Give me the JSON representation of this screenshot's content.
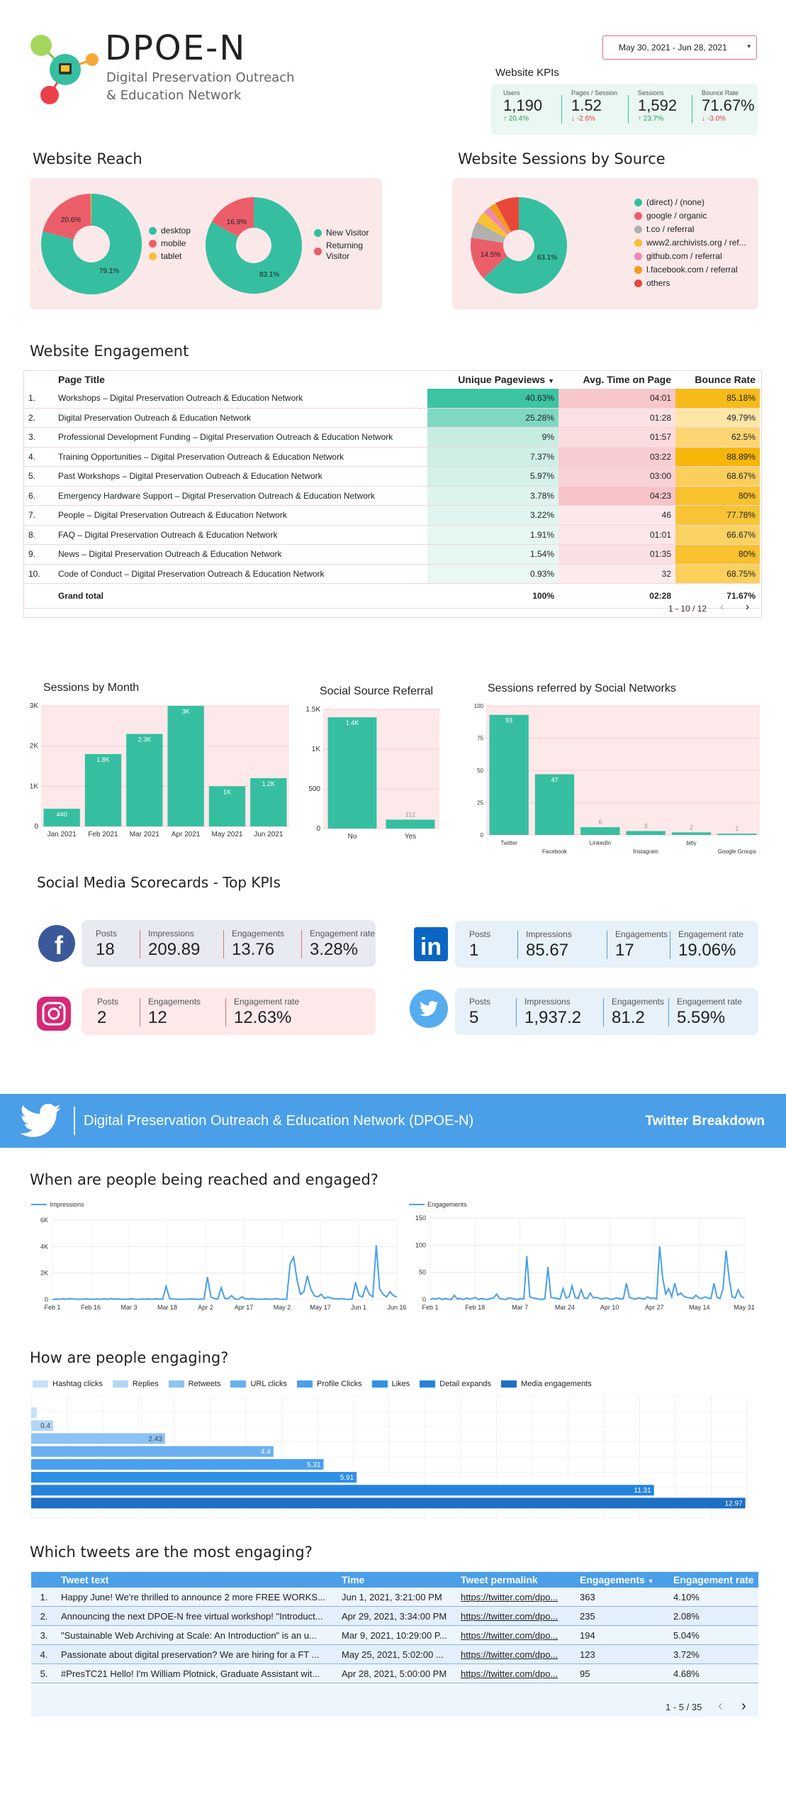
{
  "header": {
    "logo_title": "DPOE-N",
    "logo_subtitle_1": "Digital Preservation Outreach",
    "logo_subtitle_2": "& Education Network",
    "date_range": "May 30, 2021 - Jun 28, 2021",
    "kpi_title": "Website KPIs",
    "kpis": [
      {
        "label": "Users",
        "value": "1,190",
        "delta": "20.4%",
        "dir": "up"
      },
      {
        "label": "Pages / Session",
        "value": "1.52",
        "delta": "-2.6%",
        "dir": "down"
      },
      {
        "label": "Sessions",
        "value": "1,592",
        "delta": "23.7%",
        "dir": "up"
      },
      {
        "label": "Bounce Rate",
        "value": "71.67%",
        "delta": "-3.0%",
        "dir": "down"
      }
    ]
  },
  "reach": {
    "title": "Website Reach",
    "device": {
      "slices": [
        {
          "name": "desktop",
          "value": 79.1,
          "color": "#35bfa0"
        },
        {
          "name": "mobile",
          "value": 20.6,
          "color": "#ec5d6a"
        },
        {
          "name": "tablet",
          "value": 0.3,
          "color": "#f6c132"
        }
      ],
      "labels": [
        "79.1%",
        "20.6%"
      ]
    },
    "visitor": {
      "slices": [
        {
          "name": "New Visitor",
          "value": 83.1,
          "color": "#35bfa0"
        },
        {
          "name": "Returning Visitor",
          "value": 16.9,
          "color": "#ec5d6a"
        }
      ],
      "labels": [
        "83.1%",
        "16.9%"
      ]
    }
  },
  "source": {
    "title": "Website Sessions by Source",
    "slices": [
      {
        "name": "(direct) / (none)",
        "value": 63.1,
        "color": "#35bfa0"
      },
      {
        "name": "google / organic",
        "value": 14.5,
        "color": "#ec5d6a"
      },
      {
        "name": "t.co / referral",
        "value": 5.5,
        "color": "#b0b0b0"
      },
      {
        "name": "www2.archivists.org / ref...",
        "value": 4.0,
        "color": "#f6c132"
      },
      {
        "name": "github.com / referral",
        "value": 2.4,
        "color": "#ee88b3"
      },
      {
        "name": "l.facebook.com / referral",
        "value": 2.5,
        "color": "#f49a1b"
      },
      {
        "name": "others",
        "value": 8.0,
        "color": "#e8473a"
      }
    ],
    "labels": [
      "63.1%",
      "14.5%"
    ]
  },
  "engagement": {
    "title": "Website Engagement",
    "headers": {
      "page": "Page Title",
      "upv": "Unique Pageviews",
      "avg": "Avg. Time on Page",
      "bounce": "Bounce Rate"
    },
    "sort_icon": "caret-down-icon",
    "rows": [
      {
        "n": "1.",
        "page": "Workshops – Digital Preservation Outreach & Education Network",
        "upv": "40.63%",
        "avg": "04:01",
        "bounce": "85.18%",
        "upv_v": 40.63,
        "avg_v": 241,
        "bounce_v": 85.18
      },
      {
        "n": "2.",
        "page": "Digital Preservation Outreach & Education Network",
        "upv": "25.28%",
        "avg": "01:28",
        "bounce": "49.79%",
        "upv_v": 25.28,
        "avg_v": 88,
        "bounce_v": 49.79
      },
      {
        "n": "3.",
        "page": "Professional Development Funding – Digital Preservation Outreach & Education Network",
        "upv": "9%",
        "avg": "01:57",
        "bounce": "62.5%",
        "upv_v": 9,
        "avg_v": 117,
        "bounce_v": 62.5
      },
      {
        "n": "4.",
        "page": "Training Opportunities – Digital Preservation Outreach & Education Network",
        "upv": "7.37%",
        "avg": "03:22",
        "bounce": "88.89%",
        "upv_v": 7.37,
        "avg_v": 202,
        "bounce_v": 88.89
      },
      {
        "n": "5.",
        "page": "Past Workshops – Digital Preservation Outreach & Education Network",
        "upv": "5.97%",
        "avg": "03:00",
        "bounce": "68.67%",
        "upv_v": 5.97,
        "avg_v": 180,
        "bounce_v": 68.67
      },
      {
        "n": "6.",
        "page": "Emergency Hardware Support – Digital Preservation Outreach & Education Network",
        "upv": "3.78%",
        "avg": "04:23",
        "bounce": "80%",
        "upv_v": 3.78,
        "avg_v": 263,
        "bounce_v": 80
      },
      {
        "n": "7.",
        "page": "People – Digital Preservation Outreach & Education Network",
        "upv": "3.22%",
        "avg": "46",
        "bounce": "77.78%",
        "upv_v": 3.22,
        "avg_v": 46,
        "bounce_v": 77.78
      },
      {
        "n": "8.",
        "page": "FAQ – Digital Preservation Outreach & Education Network",
        "upv": "1.91%",
        "avg": "01:01",
        "bounce": "66.67%",
        "upv_v": 1.91,
        "avg_v": 61,
        "bounce_v": 66.67
      },
      {
        "n": "9.",
        "page": "News – Digital Preservation Outreach & Education Network",
        "upv": "1.54%",
        "avg": "01:35",
        "bounce": "80%",
        "upv_v": 1.54,
        "avg_v": 95,
        "bounce_v": 80
      },
      {
        "n": "10.",
        "page": "Code of Conduct – Digital Preservation Outreach & Education Network",
        "upv": "0.93%",
        "avg": "32",
        "bounce": "68.75%",
        "upv_v": 0.93,
        "avg_v": 32,
        "bounce_v": 68.75
      }
    ],
    "total": {
      "label": "Grand total",
      "upv": "100%",
      "avg": "02:28",
      "bounce": "71.67%"
    },
    "pagination": "1 - 10 / 12"
  },
  "chart_data": [
    {
      "id": "sessions_by_month",
      "type": "bar",
      "title": "Sessions by Month",
      "categories": [
        "Jan 2021",
        "Feb 2021",
        "Mar 2021",
        "Apr 2021",
        "May 2021",
        "Jun 2021"
      ],
      "values": [
        440,
        1800,
        2300,
        3000,
        1000,
        1200
      ],
      "data_labels": [
        "440",
        "1.8K",
        "2.3K",
        "3K",
        "1K",
        "1.2K"
      ],
      "yticks": [
        "0",
        "1K",
        "2K",
        "3K"
      ],
      "ylim": [
        0,
        3000
      ],
      "color": "#35bfa0"
    },
    {
      "id": "social_source_referral",
      "type": "bar",
      "title": "Social Source Referral",
      "categories": [
        "No",
        "Yes"
      ],
      "values": [
        1400,
        112
      ],
      "data_labels": [
        "1.4K",
        "112"
      ],
      "yticks": [
        "0",
        "500",
        "1K",
        "1.5K"
      ],
      "ylim": [
        0,
        1500
      ],
      "color": "#35bfa0"
    },
    {
      "id": "sessions_social_networks",
      "type": "bar",
      "title": "Sessions referred by Social Networks",
      "categories": [
        "Twitter",
        "Facebook",
        "LinkedIn",
        "Instagram",
        "bitly",
        "Google Groups"
      ],
      "values": [
        93,
        47,
        6,
        3,
        2,
        1
      ],
      "data_labels": [
        "93",
        "47",
        "6",
        "3",
        "2",
        "1"
      ],
      "yticks": [
        "0",
        "25",
        "50",
        "75",
        "100"
      ],
      "ylim": [
        0,
        100
      ],
      "color": "#35bfa0"
    },
    {
      "id": "impressions_timeline",
      "type": "line",
      "series": [
        {
          "name": "Impressions",
          "color": "#4a9fe8",
          "values": [
            0,
            40,
            20,
            60,
            30,
            80,
            50,
            30,
            20,
            40,
            60,
            20,
            30,
            40,
            20,
            60,
            30,
            80,
            40,
            50,
            30,
            20,
            40,
            60,
            30,
            20,
            40,
            30,
            50,
            20,
            60,
            40,
            30,
            1000,
            80,
            40,
            30,
            20,
            40,
            30,
            60,
            40,
            20,
            30,
            40,
            1700,
            200,
            80,
            40,
            900,
            100,
            60,
            300,
            40,
            30,
            200,
            60,
            40,
            80,
            30,
            40,
            20,
            60,
            30,
            40,
            80,
            30,
            20,
            40,
            2700,
            3200,
            1500,
            400,
            600,
            1800,
            800,
            300,
            200,
            400,
            100,
            200,
            100,
            60,
            40,
            80,
            30,
            20,
            40,
            1300,
            300,
            200,
            1000,
            400,
            200,
            4100,
            800,
            400,
            200,
            600,
            300,
            200
          ]
        }
      ],
      "xticks": [
        "Feb 1",
        "Feb 16",
        "Mar 3",
        "Mar 18",
        "Apr 2",
        "Apr 17",
        "May 2",
        "May 17",
        "Jun 1",
        "Jun 16"
      ],
      "yticks": [
        "0",
        "2K",
        "4K",
        "6K"
      ],
      "ylim": [
        0,
        6000
      ]
    },
    {
      "id": "engagements_timeline",
      "type": "line",
      "series": [
        {
          "name": "Engagements",
          "color": "#4a9fe8",
          "values": [
            0,
            2,
            1,
            3,
            0,
            2,
            1,
            0,
            8,
            1,
            2,
            0,
            3,
            1,
            2,
            4,
            0,
            2,
            1,
            0,
            2,
            3,
            10,
            2,
            1,
            0,
            3,
            2,
            1,
            0,
            2,
            1,
            80,
            5,
            3,
            2,
            1,
            0,
            2,
            60,
            4,
            3,
            2,
            1,
            20,
            3,
            5,
            25,
            4,
            2,
            18,
            3,
            2,
            12,
            3,
            4,
            2,
            1,
            3,
            2,
            0,
            2,
            3,
            1,
            2,
            30,
            4,
            2,
            1,
            3,
            2,
            1,
            5,
            2,
            3,
            1,
            98,
            40,
            10,
            20,
            5,
            30,
            8,
            12,
            6,
            4,
            3,
            2,
            8,
            3,
            2,
            5,
            3,
            2,
            30,
            4,
            2,
            20,
            90,
            40,
            5,
            3,
            18,
            6,
            3
          ]
        }
      ],
      "xticks": [
        "Feb 1",
        "Feb 18",
        "Mar 7",
        "Mar 24",
        "Apr 10",
        "Apr 27",
        "May 14",
        "May 31"
      ],
      "yticks": [
        "0",
        "50",
        "100",
        "150"
      ],
      "ylim": [
        0,
        150
      ]
    },
    {
      "id": "how_engaging",
      "type": "bar",
      "series": [
        {
          "name": "Hashtag clicks",
          "value": 0.1,
          "label": "",
          "color": "#c7e1fa"
        },
        {
          "name": "Replies",
          "value": 0.4,
          "label": "0.4",
          "color": "#b3d6f8"
        },
        {
          "name": "Retweets",
          "value": 2.43,
          "label": "2.43",
          "color": "#8cc2f4"
        },
        {
          "name": "URL clicks",
          "value": 4.4,
          "label": "4.4",
          "color": "#69aff0"
        },
        {
          "name": "Profile Clicks",
          "value": 5.31,
          "label": "5.31",
          "color": "#4aa0ed"
        },
        {
          "name": "Likes",
          "value": 5.91,
          "label": "5.91",
          "color": "#2f90e8"
        },
        {
          "name": "Detail expands",
          "value": 11.31,
          "label": "11.31",
          "color": "#2683db"
        },
        {
          "name": "Media engagements",
          "value": 12.97,
          "label": "12.97",
          "color": "#1f6fc3"
        }
      ],
      "xlim": [
        0,
        13
      ]
    }
  ],
  "charts_text": {
    "sessions_title": "Sessions by Month",
    "social_title": "Social Source Referral",
    "networks_title": "Sessions referred by Social Networks"
  },
  "scorecards": {
    "title": "Social Media Scorecards - Top KPIs",
    "facebook": {
      "icon": "facebook-icon",
      "metrics": [
        {
          "label": "Posts",
          "value": "18"
        },
        {
          "label": "Impressions",
          "value": "209.89"
        },
        {
          "label": "Engagements",
          "value": "13.76"
        },
        {
          "label": "Engagement rate",
          "value": "3.28%"
        }
      ]
    },
    "linkedin": {
      "icon": "linkedin-icon",
      "metrics": [
        {
          "label": "Posts",
          "value": "1"
        },
        {
          "label": "Impressions",
          "value": "85.67"
        },
        {
          "label": "Engagements",
          "value": "17"
        },
        {
          "label": "Engagement rate",
          "value": "19.06%"
        }
      ]
    },
    "instagram": {
      "icon": "instagram-icon",
      "metrics": [
        {
          "label": "Posts",
          "value": "2"
        },
        {
          "label": "Engagements",
          "value": "12"
        },
        {
          "label": "Engagement rate",
          "value": "12.63%"
        }
      ]
    },
    "twitter": {
      "icon": "twitter-icon",
      "metrics": [
        {
          "label": "Posts",
          "value": "5"
        },
        {
          "label": "Impressions",
          "value": "1,937.2"
        },
        {
          "label": "Engagements",
          "value": "81.2"
        },
        {
          "label": "Engagement rate",
          "value": "5.59%"
        }
      ]
    }
  },
  "twitter": {
    "banner_title": "Digital Preservation Outreach & Education Network (DPOE-N)",
    "banner_right": "Twitter Breakdown",
    "reach_title": "When are people being reached and engaged?",
    "engaging_title": "How are people engaging?",
    "tweets_title": "Which tweets are the most engaging?",
    "tweets_headers": {
      "text": "Tweet text",
      "time": "Time",
      "link": "Tweet permalink",
      "eng": "Engagements",
      "rate": "Engagement rate"
    },
    "tweets": [
      {
        "n": "1.",
        "text": "Happy June! We're thrilled to announce 2 more FREE WORKS...",
        "time": "Jun 1, 2021, 3:21:00 PM",
        "link": "https://twitter.com/dpo...",
        "eng": "363",
        "rate": "4.10%"
      },
      {
        "n": "2.",
        "text": "Announcing the next DPOE-N free virtual workshop! \"Introduct...",
        "time": "Apr 29, 2021, 3:34:00 PM",
        "link": "https://twitter.com/dpo...",
        "eng": "235",
        "rate": "2.08%"
      },
      {
        "n": "3.",
        "text": "\"Sustainable Web Archiving at Scale: An Introduction\" is an u...",
        "time": "Mar 9, 2021, 10:29:00 P...",
        "link": "https://twitter.com/dpo...",
        "eng": "194",
        "rate": "5.04%"
      },
      {
        "n": "4.",
        "text": "Passionate about digital preservation? We are hiring for a FT ...",
        "time": "May 25, 2021, 5:02:00 ...",
        "link": "https://twitter.com/dpo...",
        "eng": "123",
        "rate": "3.72%"
      },
      {
        "n": "5.",
        "text": "#PresTC21 Hello! I'm William Plotnick, Graduate Assistant wit...",
        "time": "Apr 28, 2021, 5:00:00 PM",
        "link": "https://twitter.com/dpo...",
        "eng": "95",
        "rate": "4.68%"
      }
    ],
    "tweets_pagination": "1 - 5 / 35"
  }
}
